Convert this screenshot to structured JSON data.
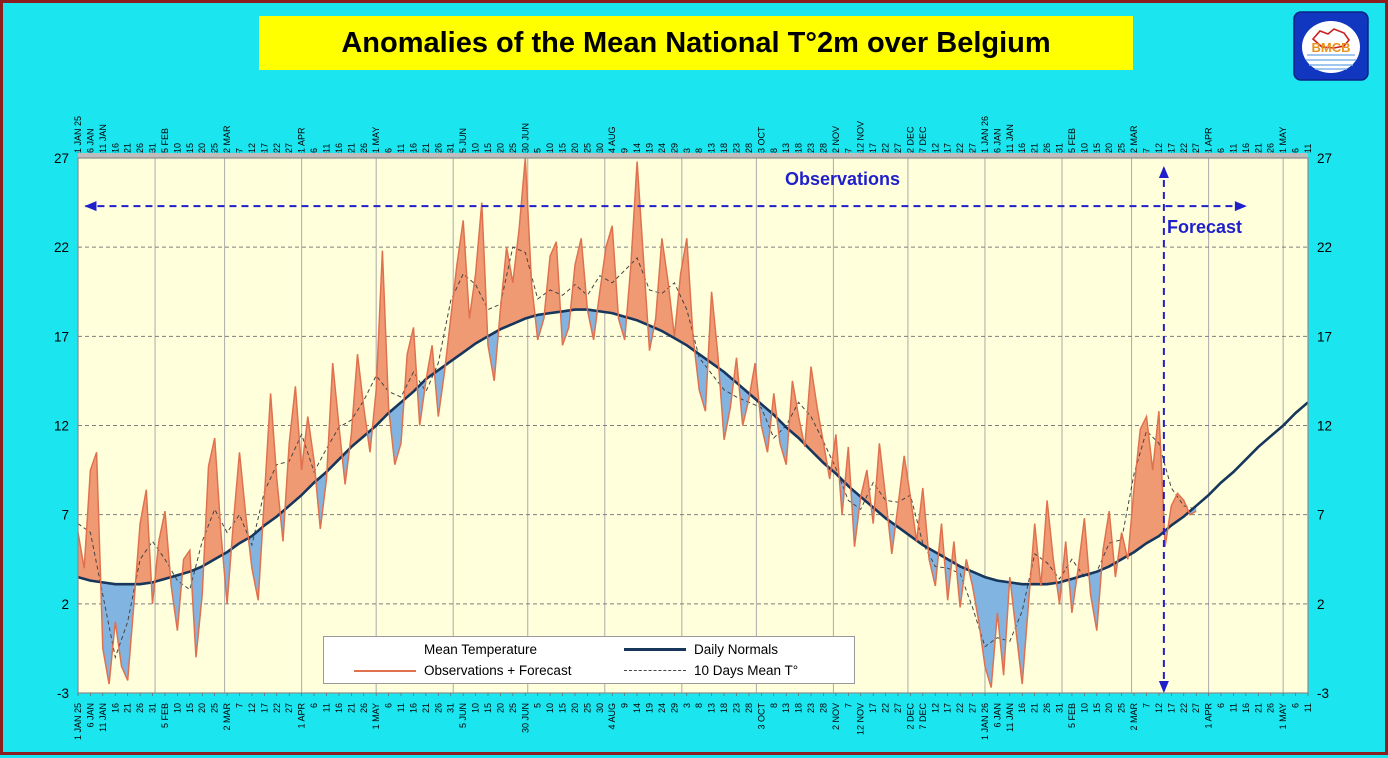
{
  "page": {
    "title": "Anomalies of the Mean National T°2m over Belgium"
  },
  "theme": {
    "background": "#1BE6F0",
    "page_border": "#8B1E1E",
    "title_banner": "#FFFF00",
    "plot_bg": "#FFFFDC",
    "warm_fill": "#F09A74",
    "cold_fill": "#82B4E1",
    "observations_line": "#E0714E",
    "normals_line": "#16365C",
    "ten_day_line": "#444444"
  },
  "logo": {
    "text": "BMCB"
  },
  "annotations": {
    "observations": "Observations",
    "forecast": "Forecast",
    "arrow_color": "#1F1FCC"
  },
  "legend": {
    "mean_temperature_title": "Mean Temperature",
    "observations_forecast": "Observations + Forecast",
    "daily_normals": "Daily Normals",
    "ten_day_mean": "10 Days Mean T°"
  },
  "chart_data": {
    "type": "line",
    "title": "Anomalies of the Mean National T°2m over Belgium",
    "ylim": [
      -3,
      27
    ],
    "yticks": [
      -3,
      2,
      7,
      12,
      17,
      22,
      27
    ],
    "grid": true,
    "x_total_days": 495,
    "x_tick_step_days": 5,
    "x_tick_labels": [
      "1 JAN 25",
      "6 JAN",
      "11 JAN",
      "16",
      "21",
      "26",
      "31",
      "5 FEB",
      "10",
      "15",
      "20",
      "25",
      "2 MAR",
      "7",
      "12",
      "17",
      "22",
      "27",
      "1 APR",
      "6",
      "11",
      "16",
      "21",
      "26",
      "1 MAY",
      "6",
      "11",
      "16",
      "21",
      "26",
      "31",
      "5 JUN",
      "10",
      "15",
      "20",
      "25",
      "30 JUN",
      "5",
      "10",
      "15",
      "20",
      "25",
      "30",
      "4 AUG",
      "9",
      "14",
      "19",
      "24",
      "29",
      "3",
      "8",
      "13",
      "18",
      "23",
      "28",
      "3 OCT",
      "8",
      "13",
      "18",
      "23",
      "28",
      "2 NOV",
      "7",
      "12 NOV",
      "17",
      "22",
      "27",
      "2 DEC",
      "7 DEC",
      "12",
      "17",
      "22",
      "27",
      "1 JAN 26",
      "6 JAN",
      "11 JAN",
      "16",
      "21",
      "26",
      "31",
      "5 FEB",
      "10",
      "15",
      "20",
      "25",
      "2 MAR",
      "7",
      "12",
      "17",
      "22",
      "27",
      "1 APR",
      "6",
      "11",
      "16",
      "21",
      "26",
      "1 MAY",
      "6",
      "11"
    ],
    "month_grid_days": [
      31,
      59,
      90,
      120,
      151,
      181,
      212,
      243,
      273,
      304,
      334,
      365,
      396,
      424,
      455,
      485
    ],
    "observations_arrow_y": 24.3,
    "forecast_boundary_day": 437,
    "series": [
      {
        "name": "Mean Temperature Observations + Forecast",
        "color": "#E0714E",
        "fill_above": "#F09A74",
        "fill_below": "#82B4E1",
        "step_days": 2.5,
        "values": [
          6.0,
          4.0,
          9.5,
          10.5,
          -0.5,
          -2.5,
          1.0,
          -1.5,
          -2.3,
          2.0,
          6.5,
          8.4,
          2.0,
          5.5,
          7.2,
          3.0,
          0.5,
          4.5,
          5.0,
          -1.0,
          2.5,
          9.7,
          11.3,
          6.0,
          2.0,
          6.5,
          10.5,
          7.0,
          4.0,
          2.2,
          8.0,
          13.8,
          9.0,
          5.5,
          11.0,
          14.2,
          9.5,
          12.5,
          10.0,
          6.2,
          9.0,
          15.5,
          12.0,
          8.7,
          11.5,
          16.0,
          13.0,
          10.5,
          14.0,
          21.8,
          13.0,
          9.8,
          11.0,
          16.0,
          17.5,
          12.0,
          14.5,
          16.5,
          12.5,
          15.0,
          18.0,
          21.0,
          23.5,
          18.0,
          20.5,
          24.5,
          16.5,
          14.5,
          18.5,
          22.0,
          20.0,
          23.0,
          27.0,
          20.0,
          16.8,
          18.0,
          21.5,
          22.3,
          16.5,
          17.5,
          21.0,
          22.5,
          18.5,
          16.8,
          19.5,
          22.0,
          23.2,
          18.0,
          16.8,
          21.0,
          26.8,
          21.5,
          16.2,
          18.0,
          22.5,
          20.0,
          17.0,
          20.5,
          22.5,
          17.0,
          14.0,
          12.8,
          19.5,
          16.0,
          11.2,
          13.0,
          15.8,
          12.0,
          13.5,
          15.5,
          12.0,
          10.5,
          13.8,
          11.0,
          9.8,
          14.5,
          12.5,
          10.8,
          15.3,
          13.0,
          11.0,
          9.0,
          11.5,
          7.0,
          10.8,
          5.2,
          8.0,
          9.5,
          6.5,
          11.0,
          8.0,
          4.8,
          7.5,
          10.3,
          8.0,
          5.5,
          8.5,
          4.5,
          3.0,
          6.5,
          2.2,
          5.5,
          1.8,
          4.5,
          3.0,
          1.0,
          -1.5,
          -2.7,
          1.5,
          -2.0,
          3.5,
          0.5,
          -2.5,
          2.0,
          6.5,
          3.0,
          7.8,
          4.5,
          2.0,
          5.5,
          1.5,
          4.0,
          6.8,
          2.5,
          0.5,
          5.0,
          7.2,
          3.5,
          6.0,
          4.5,
          8.5,
          11.8,
          12.5,
          9.5,
          12.8,
          5.2,
          7.5,
          8.2,
          7.8,
          7.0,
          7.2
        ]
      },
      {
        "name": "Daily Normals",
        "color": "#16365C",
        "step_days": 5,
        "values": [
          3.5,
          3.3,
          3.2,
          3.1,
          3.1,
          3.1,
          3.2,
          3.4,
          3.6,
          3.8,
          4.1,
          4.5,
          4.9,
          5.4,
          5.8,
          6.4,
          6.9,
          7.5,
          8.1,
          8.8,
          9.4,
          10.1,
          10.8,
          11.4,
          12.0,
          12.7,
          13.3,
          13.9,
          14.6,
          15.1,
          15.6,
          16.1,
          16.6,
          17.0,
          17.4,
          17.7,
          18.0,
          18.2,
          18.3,
          18.4,
          18.5,
          18.5,
          18.4,
          18.3,
          18.1,
          17.9,
          17.6,
          17.3,
          16.9,
          16.5,
          16.0,
          15.5,
          15.0,
          14.4,
          13.8,
          13.2,
          12.6,
          11.9,
          11.3,
          10.6,
          9.9,
          9.3,
          8.6,
          8.0,
          7.4,
          6.8,
          6.3,
          5.8,
          5.3,
          4.9,
          4.5,
          4.1,
          3.8,
          3.5,
          3.3,
          3.2,
          3.1,
          3.1,
          3.1,
          3.2,
          3.4,
          3.6,
          3.8,
          4.1,
          4.5,
          4.9,
          5.4,
          5.8,
          6.4,
          6.9,
          7.5,
          8.1,
          8.8,
          9.4,
          10.1,
          10.8,
          11.4,
          12.0,
          12.7,
          13.3
        ]
      },
      {
        "name": "10 Days Mean T°",
        "color": "#444444",
        "dashed": true,
        "step_days": 5,
        "values": [
          6.5,
          6.0,
          2.5,
          -1.0,
          1.0,
          4.5,
          5.5,
          4.5,
          3.3,
          2.8,
          5.5,
          7.3,
          6.0,
          7.0,
          5.3,
          8.3,
          9.8,
          10.0,
          11.5,
          9.4,
          10.7,
          11.9,
          12.3,
          13.4,
          14.8,
          13.9,
          13.6,
          15.0,
          13.9,
          15.5,
          19.0,
          20.5,
          19.9,
          18.5,
          18.8,
          22.0,
          21.7,
          19.1,
          19.6,
          19.3,
          19.9,
          19.3,
          20.4,
          20.0,
          20.7,
          21.4,
          19.6,
          19.4,
          20.0,
          18.5,
          15.8,
          14.9,
          14.0,
          13.6,
          13.3,
          13.0,
          11.3,
          12.0,
          13.3,
          12.5,
          11.1,
          9.6,
          7.8,
          7.3,
          8.8,
          7.8,
          7.7,
          8.1,
          5.4,
          4.1,
          4.0,
          3.7,
          1.8,
          -0.4,
          0.1,
          -0.1,
          1.6,
          4.8,
          4.3,
          3.4,
          4.5,
          3.5,
          3.8,
          5.4,
          5.6,
          9.3,
          11.7,
          11.0,
          8.5,
          7.5,
          7.3
        ]
      }
    ]
  }
}
